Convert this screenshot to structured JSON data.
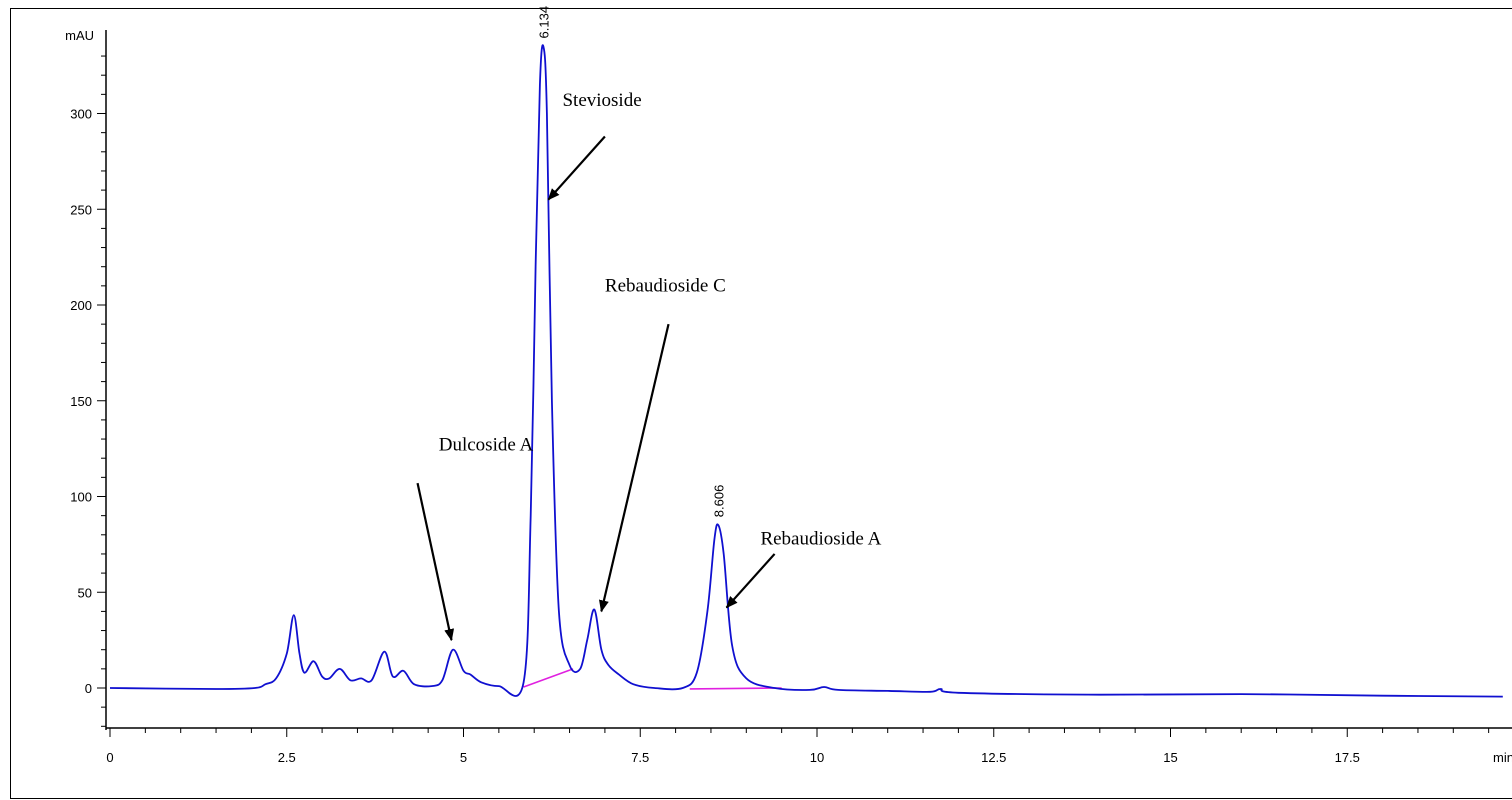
{
  "chart_data": {
    "type": "line",
    "xlabel": "min",
    "ylabel": "mAU",
    "xlim": [
      0,
      19.7
    ],
    "ylim": [
      -25,
      340
    ],
    "x_ticks": [
      0,
      2.5,
      5,
      7.5,
      10,
      12.5,
      15,
      17.5
    ],
    "x_tick_labels": [
      "0",
      "2.5",
      "5",
      "7.5",
      "10",
      "12.5",
      "15",
      "17.5"
    ],
    "y_ticks": [
      0,
      50,
      100,
      150,
      200,
      250,
      300
    ],
    "y_tick_labels": [
      "0",
      "50",
      "100",
      "150",
      "200",
      "250",
      "300"
    ],
    "grid": false,
    "colors": {
      "trace": "#1010d0",
      "baseline": "#e020e0",
      "axis": "#000000"
    },
    "series": [
      {
        "x": [
          0,
          1.5,
          2.05,
          2.2,
          2.35,
          2.5,
          2.6,
          2.68,
          2.75,
          2.88,
          3.0,
          3.1,
          3.25,
          3.4,
          3.55,
          3.7,
          3.88,
          4.0,
          4.15,
          4.3,
          4.55,
          4.7,
          4.85,
          5.0,
          5.1,
          5.25,
          5.5,
          5.85,
          5.95,
          6.02,
          6.08,
          6.13,
          6.18,
          6.25,
          6.35,
          6.5,
          6.65,
          6.75,
          6.85,
          6.95,
          7.05,
          7.2,
          7.4,
          7.7,
          8.1,
          8.3,
          8.45,
          8.55,
          8.606,
          8.68,
          8.8,
          9.0,
          9.4,
          9.9,
          10.1,
          10.3,
          11.0,
          11.6,
          11.75,
          12.0,
          14.0,
          16.0,
          18.0,
          19.7
        ],
        "y": [
          0,
          -0.5,
          0,
          2,
          5,
          18,
          38,
          18,
          8,
          14,
          6,
          5,
          10,
          4,
          5,
          4,
          19,
          6,
          9,
          2,
          1,
          4,
          20,
          9,
          7,
          3,
          1,
          3,
          90,
          220,
          315,
          335,
          300,
          150,
          40,
          12,
          10,
          25,
          41,
          20,
          12,
          7,
          2,
          0,
          0,
          8,
          40,
          78,
          85,
          70,
          22,
          5,
          0,
          -1,
          0.5,
          -1,
          -1.5,
          -2,
          -0.5,
          -2.5,
          -3.5,
          -3.2,
          -4,
          -4.5
        ]
      }
    ],
    "integration_baselines": [
      {
        "x": [
          5.85,
          6.55
        ],
        "y": [
          0.5,
          10
        ]
      },
      {
        "x": [
          8.2,
          9.5
        ],
        "y": [
          -0.5,
          0
        ]
      }
    ],
    "peak_labels": [
      {
        "text": "6.134",
        "x": 6.134,
        "y": 335
      },
      {
        "text": "8.606",
        "x": 8.606,
        "y": 85
      }
    ],
    "annotations": [
      {
        "text": "Stevioside",
        "text_x": 6.4,
        "text_y": 304,
        "arrow_from": [
          7.0,
          288
        ],
        "arrow_to": [
          6.2,
          255
        ]
      },
      {
        "text": "Rebaudioside C",
        "text_x": 7.0,
        "text_y": 207,
        "arrow_from": [
          7.9,
          190
        ],
        "arrow_to": [
          6.95,
          40
        ]
      },
      {
        "text": "Dulcoside A",
        "text_x": 4.65,
        "text_y": 124,
        "arrow_from": [
          4.35,
          107
        ],
        "arrow_to": [
          4.83,
          25
        ]
      },
      {
        "text": "Rebaudioside A",
        "text_x": 9.2,
        "text_y": 75,
        "arrow_from": [
          9.4,
          70
        ],
        "arrow_to": [
          8.72,
          42
        ]
      }
    ]
  }
}
